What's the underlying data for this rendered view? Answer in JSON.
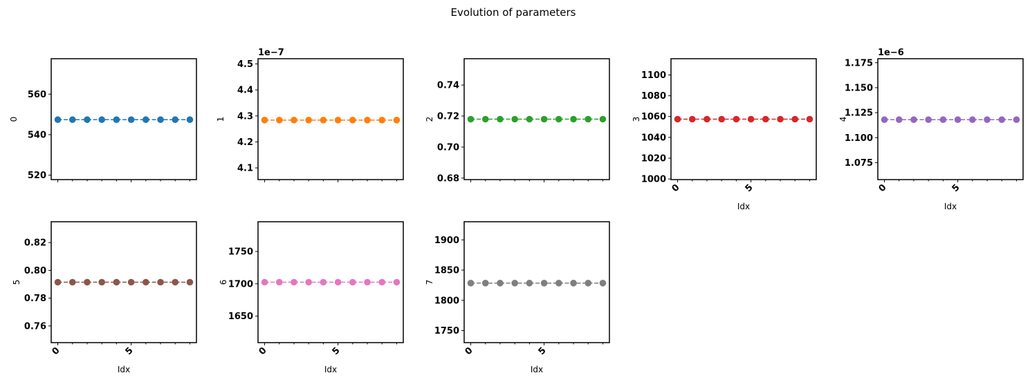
{
  "title": "Evolution of parameters",
  "chart_data": [
    {
      "type": "line",
      "ylabel": "0",
      "xlabel": "",
      "color": "#1f77b4",
      "offset_text": "",
      "x": [
        0,
        1,
        2,
        3,
        4,
        5,
        6,
        7,
        8,
        9
      ],
      "values": [
        547.4,
        547.4,
        547.4,
        547.4,
        547.4,
        547.4,
        547.4,
        547.4,
        547.4,
        547.4
      ],
      "ylim": [
        517.8,
        577.5
      ],
      "yticks": [
        {
          "v": 520,
          "label": "520"
        },
        {
          "v": 540,
          "label": "540"
        },
        {
          "v": 560,
          "label": "560"
        }
      ],
      "xticks": [],
      "show_x_labels": false
    },
    {
      "type": "line",
      "ylabel": "1",
      "xlabel": "",
      "color": "#ff7f0e",
      "offset_text": "1e−7",
      "x": [
        0,
        1,
        2,
        3,
        4,
        5,
        6,
        7,
        8,
        9
      ],
      "values": [
        4.284,
        4.284,
        4.284,
        4.284,
        4.284,
        4.284,
        4.284,
        4.284,
        4.284,
        4.284
      ],
      "ylim": [
        4.055,
        4.52
      ],
      "yticks": [
        {
          "v": 4.1,
          "label": "4.1"
        },
        {
          "v": 4.2,
          "label": "4.2"
        },
        {
          "v": 4.3,
          "label": "4.3"
        },
        {
          "v": 4.4,
          "label": "4.4"
        },
        {
          "v": 4.5,
          "label": "4.5"
        }
      ],
      "xticks": [],
      "show_x_labels": false
    },
    {
      "type": "line",
      "ylabel": "2",
      "xlabel": "",
      "color": "#2ca02c",
      "offset_text": "",
      "x": [
        0,
        1,
        2,
        3,
        4,
        5,
        6,
        7,
        8,
        9
      ],
      "values": [
        0.718,
        0.718,
        0.718,
        0.718,
        0.718,
        0.718,
        0.718,
        0.718,
        0.718,
        0.718
      ],
      "ylim": [
        0.679,
        0.757
      ],
      "yticks": [
        {
          "v": 0.68,
          "label": "0.68"
        },
        {
          "v": 0.7,
          "label": "0.70"
        },
        {
          "v": 0.72,
          "label": "0.72"
        },
        {
          "v": 0.74,
          "label": "0.74"
        }
      ],
      "xticks": [],
      "show_x_labels": false
    },
    {
      "type": "line",
      "ylabel": "3",
      "xlabel": "Idx",
      "color": "#d62728",
      "offset_text": "",
      "x": [
        0,
        1,
        2,
        3,
        4,
        5,
        6,
        7,
        8,
        9
      ],
      "values": [
        1057.5,
        1057.5,
        1057.5,
        1057.5,
        1057.5,
        1057.5,
        1057.5,
        1057.5,
        1057.5,
        1057.5
      ],
      "ylim": [
        999.4,
        1115.6
      ],
      "yticks": [
        {
          "v": 1000,
          "label": "1000"
        },
        {
          "v": 1020,
          "label": "1020"
        },
        {
          "v": 1040,
          "label": "1040"
        },
        {
          "v": 1060,
          "label": "1060"
        },
        {
          "v": 1080,
          "label": "1080"
        },
        {
          "v": 1100,
          "label": "1100"
        }
      ],
      "xticks": [
        {
          "v": 0,
          "label": "0"
        },
        {
          "v": 5,
          "label": "5"
        }
      ],
      "show_x_labels": true
    },
    {
      "type": "line",
      "ylabel": "4",
      "xlabel": "Idx",
      "color": "#9467bd",
      "offset_text": "1e−6",
      "x": [
        0,
        1,
        2,
        3,
        4,
        5,
        6,
        7,
        8,
        9
      ],
      "values": [
        1.118,
        1.118,
        1.118,
        1.118,
        1.118,
        1.118,
        1.118,
        1.118,
        1.118,
        1.118
      ],
      "ylim": [
        1.058,
        1.179
      ],
      "yticks": [
        {
          "v": 1.075,
          "label": "1.075"
        },
        {
          "v": 1.1,
          "label": "1.100"
        },
        {
          "v": 1.125,
          "label": "1.125"
        },
        {
          "v": 1.15,
          "label": "1.150"
        },
        {
          "v": 1.175,
          "label": "1.175"
        }
      ],
      "xticks": [
        {
          "v": 0,
          "label": "0"
        },
        {
          "v": 5,
          "label": "5"
        }
      ],
      "show_x_labels": true
    },
    {
      "type": "line",
      "ylabel": "5",
      "xlabel": "Idx",
      "color": "#8c564b",
      "offset_text": "",
      "x": [
        0,
        1,
        2,
        3,
        4,
        5,
        6,
        7,
        8,
        9
      ],
      "values": [
        0.7915,
        0.7915,
        0.7915,
        0.7915,
        0.7915,
        0.7915,
        0.7915,
        0.7915,
        0.7915,
        0.7915
      ],
      "ylim": [
        0.748,
        0.835
      ],
      "yticks": [
        {
          "v": 0.76,
          "label": "0.76"
        },
        {
          "v": 0.78,
          "label": "0.78"
        },
        {
          "v": 0.8,
          "label": "0.80"
        },
        {
          "v": 0.82,
          "label": "0.82"
        }
      ],
      "xticks": [
        {
          "v": 0,
          "label": "0"
        },
        {
          "v": 5,
          "label": "5"
        }
      ],
      "show_x_labels": true
    },
    {
      "type": "line",
      "ylabel": "6",
      "xlabel": "Idx",
      "color": "#e377c2",
      "offset_text": "",
      "x": [
        0,
        1,
        2,
        3,
        4,
        5,
        6,
        7,
        8,
        9
      ],
      "values": [
        1702.5,
        1702.5,
        1702.5,
        1702.5,
        1702.5,
        1702.5,
        1702.5,
        1702.5,
        1702.5,
        1702.5
      ],
      "ylim": [
        1609.0,
        1796.0
      ],
      "yticks": [
        {
          "v": 1650,
          "label": "1650"
        },
        {
          "v": 1700,
          "label": "1700"
        },
        {
          "v": 1750,
          "label": "1750"
        }
      ],
      "xticks": [
        {
          "v": 0,
          "label": "0"
        },
        {
          "v": 5,
          "label": "5"
        }
      ],
      "show_x_labels": true
    },
    {
      "type": "line",
      "ylabel": "7",
      "xlabel": "Idx",
      "color": "#7f7f7f",
      "offset_text": "",
      "x": [
        0,
        1,
        2,
        3,
        4,
        5,
        6,
        7,
        8,
        9
      ],
      "values": [
        1828.5,
        1828.5,
        1828.5,
        1828.5,
        1828.5,
        1828.5,
        1828.5,
        1828.5,
        1828.5,
        1828.5
      ],
      "ylim": [
        1730.0,
        1930.0
      ],
      "yticks": [
        {
          "v": 1750,
          "label": "1750"
        },
        {
          "v": 1800,
          "label": "1800"
        },
        {
          "v": 1850,
          "label": "1850"
        },
        {
          "v": 1900,
          "label": "1900"
        }
      ],
      "xticks": [
        {
          "v": 0,
          "label": "0"
        },
        {
          "v": 5,
          "label": "5"
        }
      ],
      "show_x_labels": true
    }
  ]
}
